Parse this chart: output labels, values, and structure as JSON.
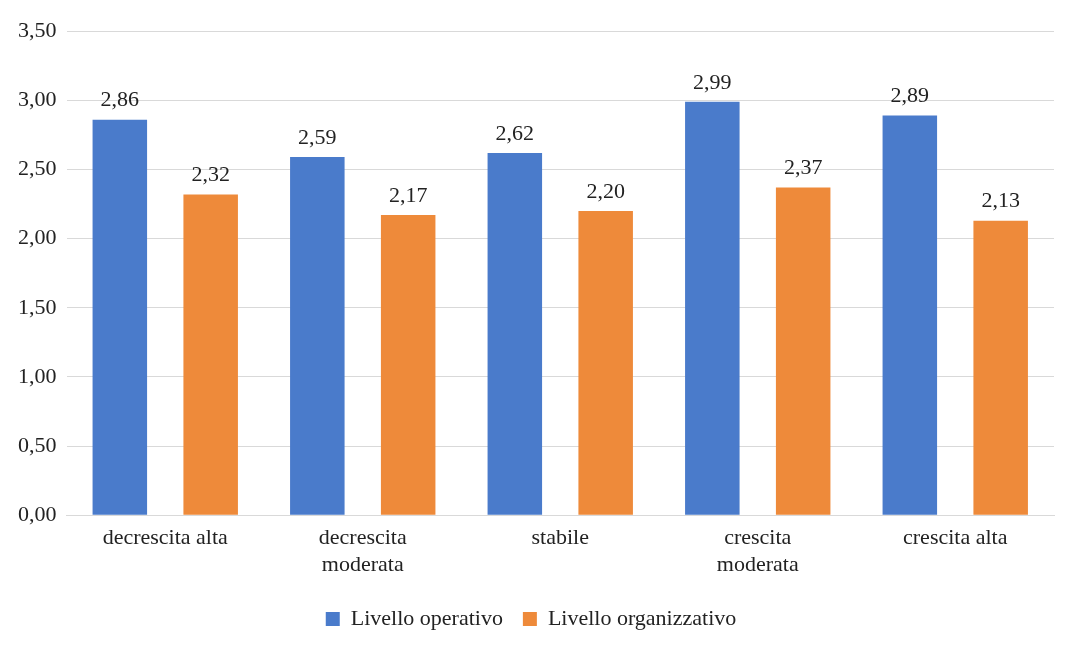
{
  "chart_data": {
    "type": "bar",
    "categories": [
      "decrescita alta",
      "decrescita moderata",
      "stabile",
      "crescita moderata",
      "crescita alta"
    ],
    "series": [
      {
        "name": "Livello operativo",
        "color": "#4a7bcb",
        "values": [
          2.86,
          2.59,
          2.62,
          2.99,
          2.89
        ],
        "value_labels": [
          "2,86",
          "2,59",
          "2,62",
          "2,99",
          "2,89"
        ]
      },
      {
        "name": "Livello organizzativo",
        "color": "#ee8a3a",
        "values": [
          2.32,
          2.17,
          2.2,
          2.37,
          2.13
        ],
        "value_labels": [
          "2,32",
          "2,17",
          "2,20",
          "2,37",
          "2,13"
        ]
      }
    ],
    "ylim": [
      0,
      3.5
    ],
    "yticks": [
      {
        "value": 0,
        "label": "0,00"
      },
      {
        "value": 0.5,
        "label": "0,50"
      },
      {
        "value": 1,
        "label": "1,00"
      },
      {
        "value": 1.5,
        "label": "1,50"
      },
      {
        "value": 2,
        "label": "2,00"
      },
      {
        "value": 2.5,
        "label": "2,50"
      },
      {
        "value": 3,
        "label": "3,00"
      },
      {
        "value": 3.5,
        "label": "3,50"
      }
    ],
    "grid": "y",
    "legend": "bottom"
  }
}
